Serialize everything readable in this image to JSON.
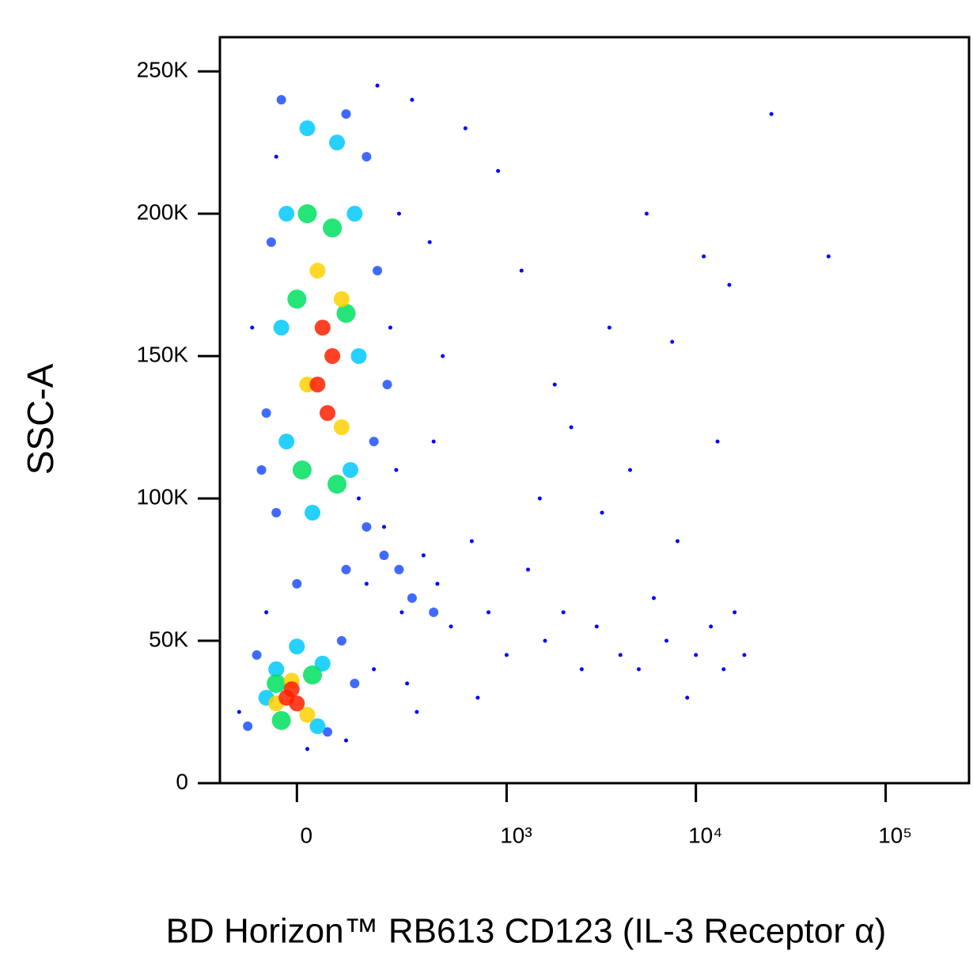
{
  "chart_data": {
    "type": "scatter",
    "xscale": "biexponential",
    "xlabel": "BD Horizon™ RB613 CD123 (IL-3 Receptor α)",
    "ylabel": "SSC-A",
    "xlim": [
      -170,
      275000
    ],
    "ylim": [
      0,
      262000
    ],
    "xticks": [
      0,
      {
        "value": 1000,
        "label": "10³"
      },
      {
        "value": 10000,
        "label": "10⁴"
      },
      {
        "value": 100000,
        "label": "10⁵"
      }
    ],
    "yticks": [
      0,
      {
        "value": 50000,
        "label": "50K"
      },
      {
        "value": 100000,
        "label": "100K"
      },
      {
        "value": 150000,
        "label": "150K"
      },
      {
        "value": 200000,
        "label": "200K"
      },
      {
        "value": 250000,
        "label": "250K"
      }
    ],
    "series": [
      {
        "color": "#0000ff",
        "x": [
          -120,
          -60,
          20,
          150,
          200,
          260,
          350,
          420,
          500,
          650,
          800,
          1000,
          1300,
          1600,
          2000,
          2500,
          3000,
          4000,
          5000,
          6000,
          7000,
          8000,
          9000,
          10000,
          12000,
          14000,
          16000,
          18000,
          600,
          900,
          1200,
          1800,
          2200,
          3500,
          4500,
          5500,
          7500,
          11000,
          15000,
          300,
          250,
          180,
          220,
          400,
          130,
          -90,
          -40,
          240,
          280,
          320,
          1500,
          700,
          25000,
          50000,
          13000,
          3200,
          450,
          380,
          100,
          170
        ],
        "y": [
          25000,
          60000,
          12000,
          70000,
          90000,
          60000,
          80000,
          70000,
          55000,
          85000,
          60000,
          45000,
          75000,
          50000,
          60000,
          40000,
          55000,
          45000,
          40000,
          65000,
          50000,
          85000,
          30000,
          45000,
          55000,
          40000,
          60000,
          45000,
          230000,
          215000,
          180000,
          140000,
          125000,
          160000,
          110000,
          200000,
          155000,
          185000,
          175000,
          240000,
          200000,
          245000,
          160000,
          120000,
          100000,
          160000,
          220000,
          110000,
          35000,
          25000,
          100000,
          30000,
          235000,
          185000,
          120000,
          95000,
          150000,
          190000,
          15000,
          40000
        ]
      },
      {
        "color": "#1e50ff",
        "x": [
          -30,
          100,
          150,
          -50,
          180,
          -60,
          170,
          -40,
          150,
          200,
          100,
          250,
          0,
          -80,
          90,
          120,
          -100,
          60,
          300,
          400,
          -70,
          210
        ],
        "y": [
          240000,
          235000,
          220000,
          190000,
          180000,
          130000,
          120000,
          95000,
          90000,
          80000,
          75000,
          75000,
          70000,
          45000,
          50000,
          35000,
          20000,
          18000,
          65000,
          60000,
          110000,
          140000
        ]
      },
      {
        "color": "#00c8ff",
        "x": [
          20,
          80,
          -20,
          120,
          -30,
          130,
          -20,
          110,
          30,
          -40,
          50,
          -60,
          40,
          0
        ],
        "y": [
          230000,
          225000,
          200000,
          200000,
          160000,
          150000,
          120000,
          110000,
          95000,
          40000,
          42000,
          30000,
          20000,
          48000
        ]
      },
      {
        "color": "#00e060",
        "x": [
          20,
          70,
          0,
          100,
          10,
          80,
          -40,
          30,
          -30
        ],
        "y": [
          200000,
          195000,
          170000,
          165000,
          110000,
          105000,
          35000,
          38000,
          22000
        ]
      },
      {
        "color": "#ffd000",
        "x": [
          40,
          90,
          20,
          90,
          -10,
          20,
          -40
        ],
        "y": [
          180000,
          170000,
          140000,
          125000,
          36000,
          24000,
          28000
        ]
      },
      {
        "color": "#ff2000",
        "x": [
          50,
          70,
          40,
          60,
          -20,
          0,
          -10
        ],
        "y": [
          160000,
          150000,
          140000,
          130000,
          30000,
          28000,
          33000
        ]
      }
    ]
  }
}
